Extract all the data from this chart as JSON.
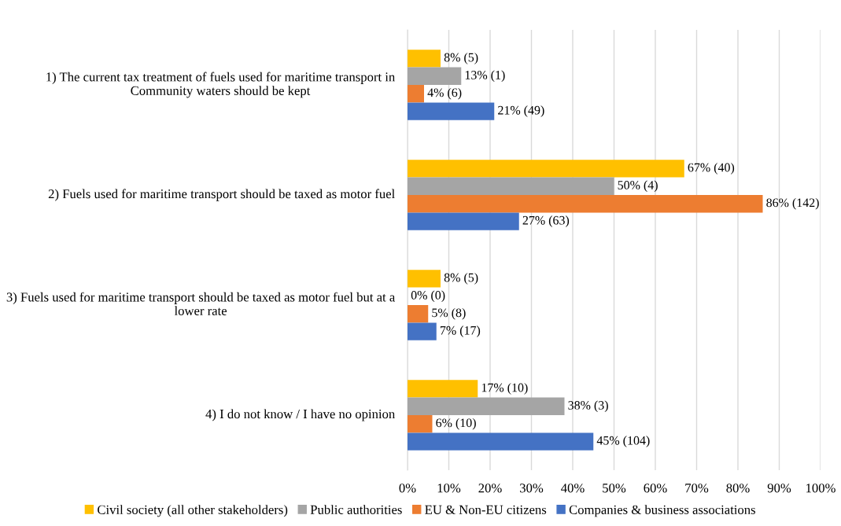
{
  "chart_data": {
    "type": "bar",
    "orientation": "horizontal",
    "categories": [
      "1) The current tax treatment of fuels used for maritime transport in Community waters should be kept",
      "2) Fuels used for maritime transport should be taxed as motor fuel",
      "3) Fuels used for maritime transport should be taxed as motor fuel but at a lower rate",
      "4) I do not know / I have no opinion"
    ],
    "series": [
      {
        "name": "Civil society (all other stakeholders)",
        "color": "#ffc000",
        "values": [
          8,
          67,
          8,
          17
        ],
        "value_labels": [
          "8% (5)",
          "67% (40)",
          "8% (5)",
          "17% (10)"
        ]
      },
      {
        "name": "Public authorities",
        "color": "#a5a5a5",
        "values": [
          13,
          50,
          0,
          38
        ],
        "value_labels": [
          "13% (1)",
          "50% (4)",
          "0% (0)",
          "38% (3)"
        ]
      },
      {
        "name": "EU & Non-EU citizens",
        "color": "#ed7d31",
        "values": [
          4,
          86,
          5,
          6
        ],
        "value_labels": [
          "4% (6)",
          "86% (142)",
          "5% (8)",
          "6% (10)"
        ]
      },
      {
        "name": "Companies & business associations",
        "color": "#4472c4",
        "values": [
          21,
          27,
          7,
          45
        ],
        "value_labels": [
          "21% (49)",
          "27% (63)",
          "7% (17)",
          "45% (104)"
        ]
      }
    ],
    "xlim": [
      0,
      100
    ],
    "xticks": [
      {
        "value": 0,
        "label": "0%"
      },
      {
        "value": 10,
        "label": "10%"
      },
      {
        "value": 20,
        "label": "20%"
      },
      {
        "value": 30,
        "label": "30%"
      },
      {
        "value": 40,
        "label": "40%"
      },
      {
        "value": 50,
        "label": "50%"
      },
      {
        "value": 60,
        "label": "60%"
      },
      {
        "value": 70,
        "label": "70%"
      },
      {
        "value": 80,
        "label": "80%"
      },
      {
        "value": 90,
        "label": "90%"
      },
      {
        "value": 100,
        "label": "100%"
      }
    ],
    "grid": "x",
    "legend": "bottom"
  }
}
